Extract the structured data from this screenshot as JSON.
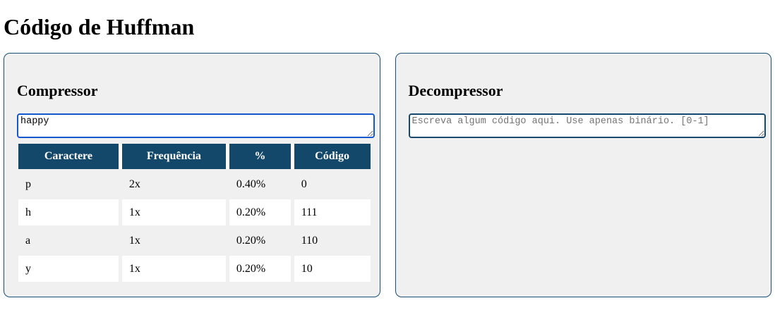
{
  "page": {
    "title": "Código de Huffman"
  },
  "compressor": {
    "heading": "Compressor",
    "input_value": "happy",
    "table": {
      "headers": [
        "Caractere",
        "Frequência",
        "%",
        "Código"
      ],
      "rows": [
        [
          "p",
          "2x",
          "0.40%",
          "0"
        ],
        [
          "h",
          "1x",
          "0.20%",
          "111"
        ],
        [
          "a",
          "1x",
          "0.20%",
          "110"
        ],
        [
          "y",
          "1x",
          "0.20%",
          "10"
        ]
      ]
    }
  },
  "decompressor": {
    "heading": "Decompressor",
    "placeholder": "Escreva algum código aqui. Use apenas binário. [0-1]"
  },
  "colors": {
    "table_header_bg": "#13486a",
    "panel_border": "#1a4e74",
    "panel_bg": "#f0f0f1",
    "focused_textarea_border": "#1657d0",
    "textarea_border": "#17496e",
    "row_alt_bg": "#ffffff",
    "placeholder_text": "#757575"
  }
}
